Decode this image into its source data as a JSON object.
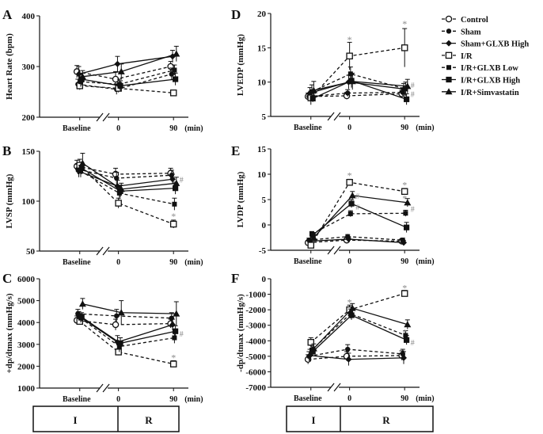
{
  "legend": [
    {
      "label": "Control",
      "marker": "open-circle",
      "dash": "4,3"
    },
    {
      "label": "Sham",
      "marker": "filled-circle",
      "dash": "4,3"
    },
    {
      "label": "Sham+GLXB High",
      "marker": "filled-diamond",
      "dash": ""
    },
    {
      "label": "I/R",
      "marker": "open-square",
      "dash": "4,3"
    },
    {
      "label": "I/R+GLXB Low",
      "marker": "filled-square-small",
      "dash": "4,3"
    },
    {
      "label": "I/R+GLXB High",
      "marker": "filled-square",
      "dash": ""
    },
    {
      "label": "I/R+Simvastatin",
      "marker": "filled-triangle",
      "dash": ""
    }
  ],
  "phase_boxes": {
    "ischemia": "I",
    "reperfusion": "R"
  },
  "chart_data": [
    {
      "panel": "A",
      "type": "line",
      "ylabel": "Heart Rate (bpm)",
      "categories": [
        "Baseline",
        "0",
        "90"
      ],
      "unit_label": "(min)",
      "ylim": [
        200,
        400
      ],
      "yticks": [
        200,
        300,
        400
      ],
      "series": [
        {
          "name": "Control",
          "values": [
            290,
            275,
            300
          ],
          "err": [
            12,
            15,
            10
          ]
        },
        {
          "name": "Sham",
          "values": [
            265,
            255,
            285
          ],
          "err": [
            10,
            10,
            12
          ]
        },
        {
          "name": "Sham+GLXB High",
          "values": [
            285,
            305,
            320
          ],
          "err": [
            15,
            15,
            12
          ]
        },
        {
          "name": "I/R",
          "values": [
            262,
            257,
            248
          ],
          "err": [
            8,
            8,
            5
          ]
        },
        {
          "name": "I/R+GLXB Low",
          "values": [
            270,
            265,
            293
          ],
          "err": [
            10,
            10,
            10
          ]
        },
        {
          "name": "I/R+GLXB High",
          "values": [
            275,
            262,
            275
          ],
          "err": [
            12,
            10,
            12
          ]
        },
        {
          "name": "I/R+Simvastatin",
          "values": [
            280,
            290,
            325
          ],
          "err": [
            12,
            15,
            15
          ]
        }
      ],
      "annotations": []
    },
    {
      "panel": "B",
      "type": "line",
      "ylabel": "LVSP (mmHg)",
      "categories": [
        "Baseline",
        "0",
        "90"
      ],
      "unit_label": "(min)",
      "ylim": [
        50,
        150
      ],
      "yticks": [
        50,
        100,
        150
      ],
      "series": [
        {
          "name": "Control",
          "values": [
            135,
            127,
            128
          ],
          "err": [
            6,
            6,
            5
          ]
        },
        {
          "name": "Sham",
          "values": [
            132,
            123,
            126
          ],
          "err": [
            5,
            6,
            5
          ]
        },
        {
          "name": "Sham+GLXB High",
          "values": [
            130,
            115,
            122
          ],
          "err": [
            6,
            6,
            5
          ]
        },
        {
          "name": "I/R",
          "values": [
            136,
            98,
            77
          ],
          "err": [
            6,
            5,
            4
          ]
        },
        {
          "name": "I/R+GLXB Low",
          "values": [
            130,
            108,
            97
          ],
          "err": [
            6,
            6,
            6
          ]
        },
        {
          "name": "I/R+GLXB High",
          "values": [
            133,
            110,
            113
          ],
          "err": [
            6,
            6,
            6
          ]
        },
        {
          "name": "I/R+Simvastatin",
          "values": [
            138,
            112,
            118
          ],
          "err": [
            10,
            6,
            6
          ]
        }
      ],
      "annotations": [
        {
          "label": "#",
          "x": "90",
          "y": 122
        },
        {
          "label": "*",
          "x": "90",
          "y": 85
        }
      ]
    },
    {
      "panel": "C",
      "type": "line",
      "ylabel": "+dp/dtmax (mmHg/s)",
      "categories": [
        "Baseline",
        "0",
        "90"
      ],
      "unit_label": "(min)",
      "ylim": [
        1000,
        6000
      ],
      "yticks": [
        1000,
        2000,
        3000,
        4000,
        5000,
        6000
      ],
      "series": [
        {
          "name": "Control",
          "values": [
            4100,
            3900,
            3950
          ],
          "err": [
            200,
            250,
            200
          ]
        },
        {
          "name": "Sham",
          "values": [
            4400,
            4300,
            4200
          ],
          "err": [
            200,
            300,
            250
          ]
        },
        {
          "name": "Sham+GLXB High",
          "values": [
            4300,
            3100,
            3900
          ],
          "err": [
            200,
            300,
            250
          ]
        },
        {
          "name": "I/R",
          "values": [
            4050,
            2650,
            2100
          ],
          "err": [
            150,
            150,
            150
          ]
        },
        {
          "name": "I/R+GLXB Low",
          "values": [
            4200,
            2900,
            3300
          ],
          "err": [
            200,
            250,
            250
          ]
        },
        {
          "name": "I/R+GLXB High",
          "values": [
            4250,
            3050,
            3600
          ],
          "err": [
            200,
            250,
            250
          ]
        },
        {
          "name": "I/R+Simvastatin",
          "values": [
            4850,
            4450,
            4400
          ],
          "err": [
            250,
            550,
            550
          ]
        }
      ],
      "annotations": [
        {
          "label": "#",
          "x": "90",
          "y": 3500
        },
        {
          "label": "*",
          "x": "90",
          "y": 2400
        }
      ]
    },
    {
      "panel": "D",
      "type": "line",
      "ylabel": "LVEDP (mmHg)",
      "categories": [
        "Baseline",
        "0",
        "90"
      ],
      "unit_label": "(min)",
      "ylim": [
        5,
        20
      ],
      "yticks": [
        5,
        10,
        15,
        20
      ],
      "series": [
        {
          "name": "Control",
          "values": [
            7.9,
            8.0,
            8.3
          ],
          "err": [
            0.5,
            0.5,
            0.5
          ]
        },
        {
          "name": "Sham",
          "values": [
            7.9,
            8.4,
            8.5
          ],
          "err": [
            0.5,
            0.5,
            0.5
          ]
        },
        {
          "name": "Sham+GLXB High",
          "values": [
            8.4,
            10.0,
            9.0
          ],
          "err": [
            0.8,
            1.0,
            0.8
          ]
        },
        {
          "name": "I/R",
          "values": [
            7.7,
            13.8,
            15.0
          ],
          "err": [
            1.0,
            2.0,
            2.8
          ]
        },
        {
          "name": "I/R+GLXB Low",
          "values": [
            8.6,
            11.2,
            9.0
          ],
          "err": [
            1.0,
            1.0,
            1.0
          ]
        },
        {
          "name": "I/R+GLXB High",
          "values": [
            7.6,
            10.2,
            7.5
          ],
          "err": [
            0.5,
            1.0,
            0.8
          ]
        },
        {
          "name": "I/R+Simvastatin",
          "values": [
            8.8,
            10.1,
            9.4
          ],
          "err": [
            1.3,
            1.2,
            1.0
          ]
        }
      ],
      "annotations": [
        {
          "label": "*",
          "x": "0",
          "y": 16.2
        },
        {
          "label": "*",
          "x": "90",
          "y": 18.5
        },
        {
          "label": "#",
          "x": "90",
          "y": 9.6
        },
        {
          "label": "#",
          "x": "90",
          "y": 8.3
        }
      ]
    },
    {
      "panel": "E",
      "type": "line",
      "ylabel": "LVDP (mmHg)",
      "categories": [
        "Baseline",
        "0",
        "90"
      ],
      "unit_label": "(min)",
      "ylim": [
        -5,
        15
      ],
      "yticks": [
        -5,
        0,
        5,
        10,
        15
      ],
      "series": [
        {
          "name": "Control",
          "values": [
            -3.5,
            -3.0,
            -3.2
          ],
          "err": [
            0.4,
            0.4,
            0.4
          ]
        },
        {
          "name": "Sham",
          "values": [
            -3.0,
            -2.3,
            -3.0
          ],
          "err": [
            0.4,
            0.4,
            0.4
          ]
        },
        {
          "name": "Sham+GLXB High",
          "values": [
            -3.2,
            -2.8,
            -3.5
          ],
          "err": [
            0.4,
            0.4,
            0.4
          ]
        },
        {
          "name": "I/R",
          "values": [
            -4.0,
            8.4,
            6.6
          ],
          "err": [
            0.5,
            0.6,
            0.6
          ]
        },
        {
          "name": "I/R+GLXB Low",
          "values": [
            -1.8,
            2.2,
            2.3
          ],
          "err": [
            0.5,
            0.6,
            0.6
          ]
        },
        {
          "name": "I/R+GLXB High",
          "values": [
            -2.0,
            4.2,
            -0.5
          ],
          "err": [
            0.5,
            0.8,
            1.0
          ]
        },
        {
          "name": "I/R+Simvastatin",
          "values": [
            -2.5,
            5.8,
            4.4
          ],
          "err": [
            0.5,
            0.8,
            0.8
          ]
        }
      ],
      "annotations": [
        {
          "label": "*",
          "x": "0",
          "y": 9.8
        },
        {
          "label": "*",
          "x": "90",
          "y": 7.9
        },
        {
          "label": "#",
          "x": "0",
          "y": 5.8
        },
        {
          "label": "#",
          "x": "0",
          "y": 3.6
        },
        {
          "label": "#",
          "x": "90",
          "y": 3.2
        },
        {
          "label": "*",
          "x": "90",
          "y": 5.2
        }
      ]
    },
    {
      "panel": "F",
      "type": "line",
      "ylabel": "-dp/dtmax (mmHg/s)",
      "categories": [
        "Baseline",
        "0",
        "90"
      ],
      "unit_label": "(min)",
      "ylim": [
        -7000,
        0
      ],
      "yticks": [
        -7000,
        -6000,
        -5000,
        -4000,
        -3000,
        -2000,
        -1000,
        0
      ],
      "series": [
        {
          "name": "Control",
          "values": [
            -5200,
            -5000,
            -4950
          ],
          "err": [
            300,
            300,
            300
          ]
        },
        {
          "name": "Sham",
          "values": [
            -5000,
            -4550,
            -4850
          ],
          "err": [
            300,
            300,
            300
          ]
        },
        {
          "name": "Sham+GLXB High",
          "values": [
            -4950,
            -5200,
            -5100
          ],
          "err": [
            400,
            400,
            400
          ]
        },
        {
          "name": "I/R",
          "values": [
            -4100,
            -2000,
            -950
          ],
          "err": [
            300,
            300,
            200
          ]
        },
        {
          "name": "I/R+GLXB Low",
          "values": [
            -4600,
            -2250,
            -3650
          ],
          "err": [
            300,
            300,
            300
          ]
        },
        {
          "name": "I/R+GLXB High",
          "values": [
            -4700,
            -2350,
            -3950
          ],
          "err": [
            300,
            300,
            300
          ]
        },
        {
          "name": "I/R+Simvastatin",
          "values": [
            -4500,
            -1900,
            -2950
          ],
          "err": [
            300,
            300,
            300
          ]
        }
      ],
      "annotations": [
        {
          "label": "*",
          "x": "0",
          "y": -1500
        },
        {
          "label": "*",
          "x": "90",
          "y": -600
        },
        {
          "label": "*",
          "x": "90",
          "y": -3450
        },
        {
          "label": "#",
          "x": "90",
          "y": -4100
        }
      ]
    }
  ]
}
